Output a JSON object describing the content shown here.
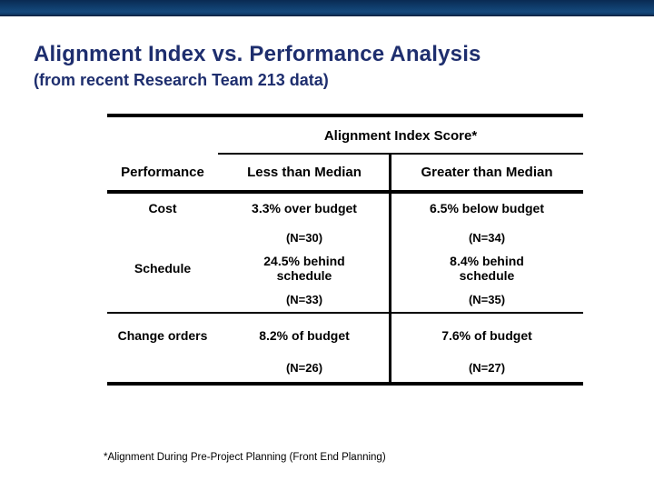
{
  "header": {
    "title": "Alignment Index vs. Performance Analysis",
    "subtitle": "(from recent Research Team 213 data)"
  },
  "table": {
    "span_header": "Alignment Index Score*",
    "columns": [
      "Performance",
      "Less than Median",
      "Greater than Median"
    ],
    "rows": [
      {
        "label": "Cost",
        "less_than_median": "3.3% over budget",
        "greater_than_median": "6.5% below budget",
        "less_n": "(N=30)",
        "greater_n": "(N=34)"
      },
      {
        "label": "Schedule",
        "less_than_median": "24.5% behind schedule",
        "greater_than_median": "8.4% behind schedule",
        "less_n": "(N=33)",
        "greater_n": "(N=35)"
      },
      {
        "label": "Change orders",
        "less_than_median": "8.2% of budget",
        "greater_than_median": "7.6% of budget",
        "less_n": "(N=26)",
        "greater_n": "(N=27)"
      }
    ]
  },
  "footnote": "*Alignment During Pre-Project Planning (Front End Planning)",
  "colors": {
    "title_navy": "#1e2e6e",
    "line_black": "#000000",
    "bar_top": "#0a2a52",
    "bar_mid": "#15497c",
    "bar_bottom": "#081c38"
  }
}
